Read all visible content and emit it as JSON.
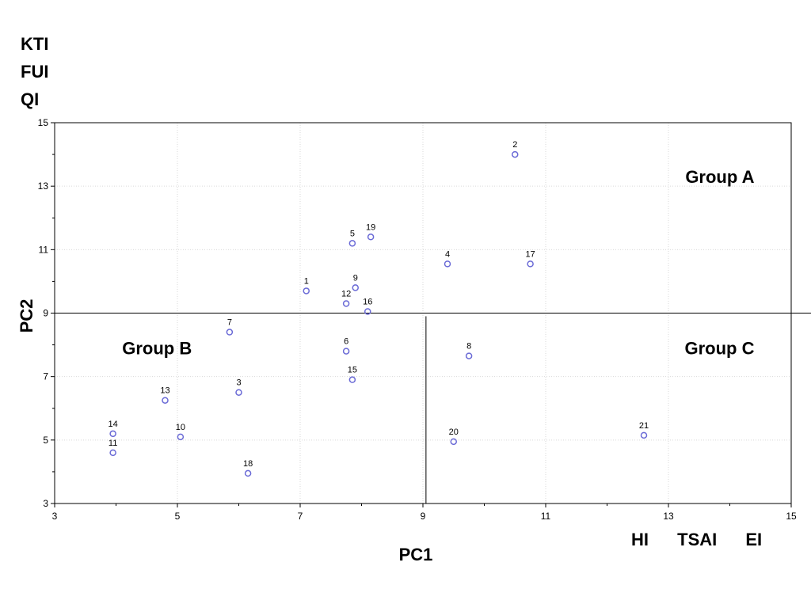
{
  "left_labels": [
    "KTI",
    "FUI",
    "QI"
  ],
  "bottom_labels": [
    "HI",
    "TSAI",
    "EI"
  ],
  "chart_data": {
    "type": "scatter",
    "title": "",
    "xlabel": "PC1",
    "ylabel": "PC2",
    "xlim": [
      3,
      15
    ],
    "ylim": [
      3,
      15
    ],
    "x_ticks": [
      3,
      5,
      7,
      9,
      11,
      13,
      15
    ],
    "y_ticks": [
      3,
      5,
      7,
      9,
      11,
      13,
      15
    ],
    "grid": true,
    "marker_color": "#6a6ad6",
    "divider_h_y": 9,
    "divider_v_x": 9.05,
    "divider_v_range": [
      3,
      8.9
    ],
    "points": [
      {
        "label": "1",
        "x": 7.1,
        "y": 9.7
      },
      {
        "label": "2",
        "x": 10.5,
        "y": 14.0
      },
      {
        "label": "3",
        "x": 6.0,
        "y": 6.5
      },
      {
        "label": "4",
        "x": 9.4,
        "y": 10.55
      },
      {
        "label": "5",
        "x": 7.85,
        "y": 11.2
      },
      {
        "label": "6",
        "x": 7.75,
        "y": 7.8
      },
      {
        "label": "7",
        "x": 5.85,
        "y": 8.4
      },
      {
        "label": "8",
        "x": 9.75,
        "y": 7.65
      },
      {
        "label": "9",
        "x": 7.9,
        "y": 9.8
      },
      {
        "label": "10",
        "x": 5.05,
        "y": 5.1
      },
      {
        "label": "11",
        "x": 3.95,
        "y": 4.6
      },
      {
        "label": "12",
        "x": 7.75,
        "y": 9.3
      },
      {
        "label": "13",
        "x": 4.8,
        "y": 6.25
      },
      {
        "label": "14",
        "x": 3.95,
        "y": 5.2
      },
      {
        "label": "15",
        "x": 7.85,
        "y": 6.9
      },
      {
        "label": "16",
        "x": 8.1,
        "y": 9.05
      },
      {
        "label": "17",
        "x": 10.75,
        "y": 10.55
      },
      {
        "label": "18",
        "x": 6.15,
        "y": 3.95
      },
      {
        "label": "19",
        "x": 8.15,
        "y": 11.4
      },
      {
        "label": "20",
        "x": 9.5,
        "y": 4.95
      },
      {
        "label": "21",
        "x": 12.6,
        "y": 5.15
      }
    ],
    "annotations": [
      {
        "text": "Group A",
        "x": 14.4,
        "y": 13.3
      },
      {
        "text": "Group B",
        "x": 4.1,
        "y": 7.9
      },
      {
        "text": "Group C",
        "x": 14.4,
        "y": 7.9
      }
    ]
  }
}
